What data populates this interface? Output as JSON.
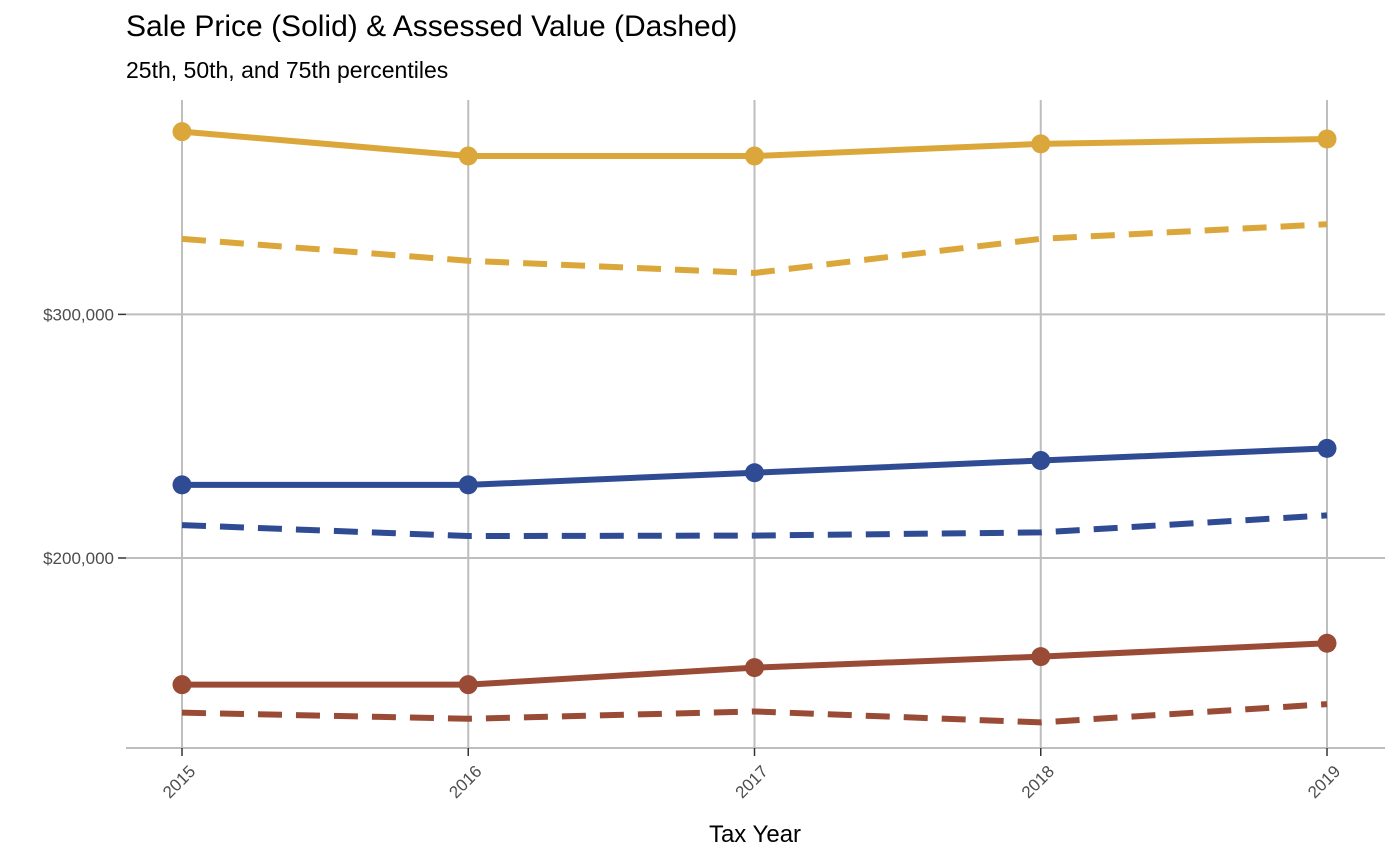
{
  "chart_data": {
    "type": "line",
    "title": "Sale Price (Solid) & Assessed Value (Dashed)",
    "subtitle": "25th, 50th, and 75th percentiles",
    "xlabel": "Tax Year",
    "ylabel": "",
    "x": [
      2015,
      2016,
      2017,
      2018,
      2019
    ],
    "ylim": [
      122000,
      388000
    ],
    "y_ticks": [
      200000,
      300000
    ],
    "y_tick_labels": [
      "$200,000",
      "$300,000"
    ],
    "grid": true,
    "legend": "none",
    "series": [
      {
        "percentile": "75th",
        "measure": "sale_price",
        "line": "solid",
        "color": "#DBA73A",
        "markers": true,
        "values": [
          375000,
          365000,
          365000,
          370000,
          372000
        ]
      },
      {
        "percentile": "75th",
        "measure": "assessed_value",
        "line": "dashed",
        "color": "#DBA73A",
        "markers": false,
        "values": [
          331000,
          322000,
          317000,
          331000,
          337000
        ]
      },
      {
        "percentile": "50th",
        "measure": "sale_price",
        "line": "solid",
        "color": "#2F4B93",
        "markers": true,
        "values": [
          230000,
          230000,
          235000,
          240000,
          245000
        ]
      },
      {
        "percentile": "50th",
        "measure": "assessed_value",
        "line": "dashed",
        "color": "#2F4B93",
        "markers": false,
        "values": [
          213500,
          209000,
          209200,
          210500,
          217500
        ]
      },
      {
        "percentile": "25th",
        "measure": "sale_price",
        "line": "solid",
        "color": "#9A4B35",
        "markers": true,
        "values": [
          148000,
          148000,
          155000,
          159500,
          165000
        ]
      },
      {
        "percentile": "25th",
        "measure": "assessed_value",
        "line": "dashed",
        "color": "#9A4B35",
        "markers": false,
        "values": [
          136500,
          134000,
          137000,
          132500,
          140000
        ]
      }
    ]
  }
}
